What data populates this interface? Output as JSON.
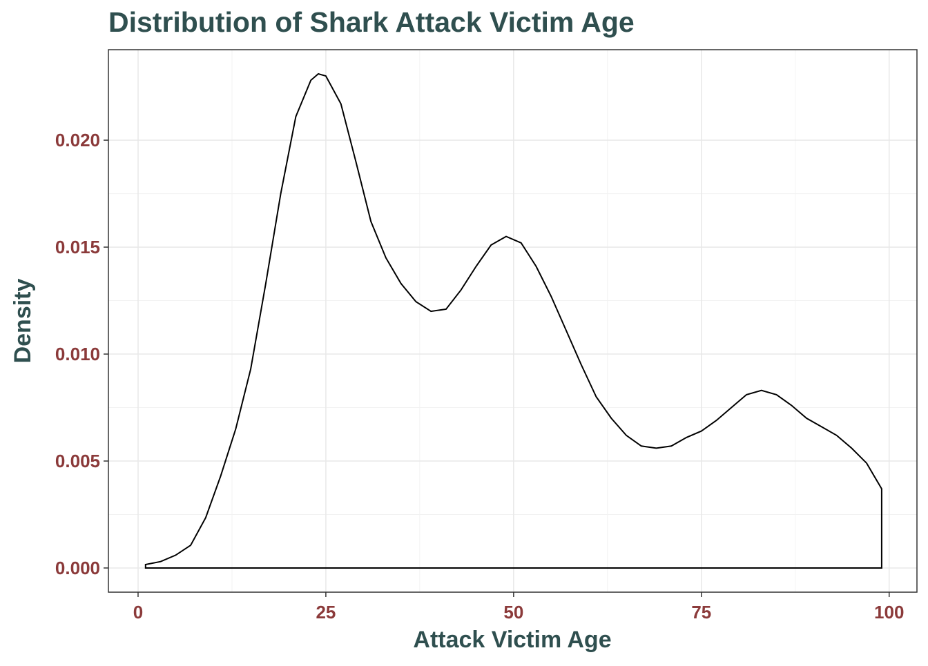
{
  "chart_data": {
    "type": "density",
    "title": "Distribution of Shark Attack Victim Age",
    "x_label": "Attack Victim Age",
    "y_label": "Density",
    "x": [
      1,
      3,
      5,
      7,
      9,
      11,
      13,
      15,
      17,
      19,
      21,
      23,
      24,
      25,
      27,
      29,
      31,
      33,
      35,
      37,
      39,
      41,
      43,
      45,
      47,
      49,
      51,
      53,
      55,
      57,
      59,
      61,
      63,
      65,
      67,
      69,
      71,
      73,
      75,
      77,
      79,
      81,
      83,
      85,
      87,
      89,
      91,
      93,
      95,
      97,
      99
    ],
    "values": [
      0.00016,
      0.0003,
      0.0006,
      0.00106,
      0.00235,
      0.0043,
      0.0065,
      0.0093,
      0.0133,
      0.0175,
      0.0211,
      0.0228,
      0.0231,
      0.023,
      0.0217,
      0.019,
      0.0162,
      0.0145,
      0.0133,
      0.01245,
      0.012,
      0.0121,
      0.013,
      0.0141,
      0.0151,
      0.0155,
      0.0152,
      0.0141,
      0.0127,
      0.0111,
      0.0095,
      0.008,
      0.007,
      0.0062,
      0.0057,
      0.0056,
      0.0057,
      0.0061,
      0.0064,
      0.0069,
      0.0075,
      0.0081,
      0.0083,
      0.0081,
      0.0076,
      0.007,
      0.0066,
      0.0062,
      0.0056,
      0.0049,
      0.0037
    ],
    "color": "#000000",
    "xlim": [
      -3.95,
      103.7
    ],
    "ylim": [
      -0.00113,
      0.02423
    ],
    "xticks": [
      0,
      25,
      50,
      75,
      100
    ],
    "yticks": [
      {
        "value": 0,
        "label": "0.000"
      },
      {
        "value": 0.005,
        "label": "0.005"
      },
      {
        "value": 0.01,
        "label": "0.010"
      },
      {
        "value": 0.015,
        "label": "0.015"
      },
      {
        "value": 0.02,
        "label": "0.020"
      }
    ],
    "grid": true,
    "minor_grid": true
  }
}
